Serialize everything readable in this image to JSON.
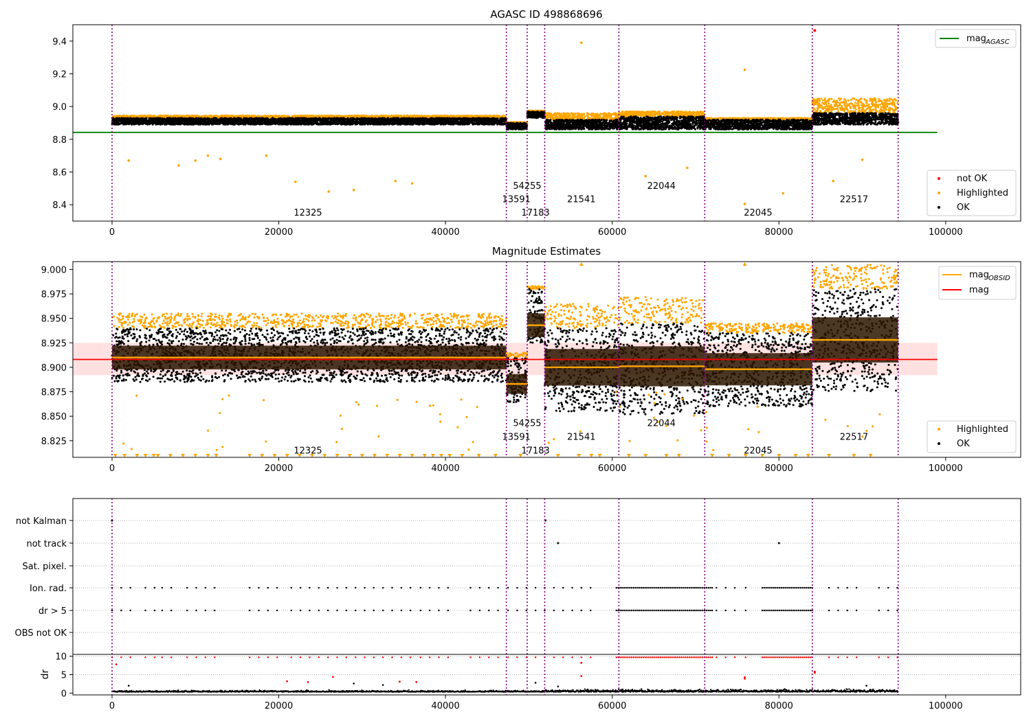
{
  "chart_data": [
    {
      "type": "scatter",
      "title": "AGASC ID 498868696",
      "xlim": [
        -4700,
        109000
      ],
      "ylim": [
        8.3,
        9.5
      ],
      "yticks": [
        8.4,
        8.6,
        8.8,
        9.0,
        9.2,
        9.4
      ],
      "ytick_labels": [
        "8.4",
        "8.6",
        "8.8",
        "9.0",
        "9.2",
        "9.4"
      ],
      "xticks": [
        0,
        20000,
        40000,
        60000,
        80000,
        100000
      ],
      "xtick_labels": [
        "0",
        "20000",
        "40000",
        "60000",
        "80000",
        "100000"
      ],
      "hline": {
        "y": 8.842,
        "x_range": [
          -4700,
          99000
        ],
        "color": "#008000"
      },
      "legend_lines": [
        {
          "label": "mag",
          "sub": "AGASC",
          "color": "#008000"
        }
      ],
      "legend_points": [
        {
          "label": "not OK",
          "color": "#ff0000"
        },
        {
          "label": "Highlighted",
          "color": "#ffa500"
        },
        {
          "label": "OK",
          "color": "#000000"
        }
      ],
      "segments": [
        {
          "obsid": "12325",
          "x0": 0,
          "x1": 47300,
          "mean": 8.91,
          "ok_band": [
            8.89,
            8.93
          ],
          "hl_band": [
            8.93,
            8.945
          ]
        },
        {
          "obsid": "13591",
          "x0": 47300,
          "x1": 49800,
          "mean": 8.88,
          "ok_band": [
            8.86,
            8.9
          ],
          "hl_band": [
            8.9,
            8.905
          ]
        },
        {
          "obsid": "54255",
          "x0": 49800,
          "x1": 51900,
          "mean": 8.945,
          "ok_band": [
            8.93,
            8.97
          ],
          "hl_band": [
            8.97,
            8.975
          ]
        },
        {
          "obsid": "17183",
          "x0": 51900,
          "x1": 51950,
          "mean": 8.9,
          "ok_band": [
            8.88,
            8.92
          ],
          "hl_band": [
            8.92,
            8.93
          ]
        },
        {
          "obsid": "21541",
          "x0": 51950,
          "x1": 60800,
          "mean": 8.9,
          "ok_band": [
            8.86,
            8.92
          ],
          "hl_band": [
            8.92,
            8.96
          ]
        },
        {
          "obsid": "22044",
          "x0": 60800,
          "x1": 71100,
          "mean": 8.905,
          "ok_band": [
            8.86,
            8.94
          ],
          "hl_band": [
            8.94,
            8.97
          ]
        },
        {
          "obsid": "22045",
          "x0": 71100,
          "x1": 84000,
          "mean": 8.895,
          "ok_band": [
            8.86,
            8.92
          ],
          "hl_band": [
            8.92,
            8.93
          ]
        },
        {
          "obsid": "22517",
          "x0": 84000,
          "x1": 94300,
          "mean": 8.93,
          "ok_band": [
            8.89,
            8.96
          ],
          "hl_band": [
            8.96,
            9.05
          ]
        }
      ],
      "obsid_labels": [
        {
          "text": "12325",
          "x": 23500,
          "y": 8.333
        },
        {
          "text": "13591",
          "x": 48500,
          "y": 8.415
        },
        {
          "text": "54255",
          "x": 49800,
          "y": 8.498
        },
        {
          "text": "17183",
          "x": 50800,
          "y": 8.333
        },
        {
          "text": "21541",
          "x": 56300,
          "y": 8.415
        },
        {
          "text": "22044",
          "x": 65900,
          "y": 8.498
        },
        {
          "text": "22045",
          "x": 77500,
          "y": 8.333
        },
        {
          "text": "22517",
          "x": 89000,
          "y": 8.415
        }
      ],
      "outliers_highlighted": [
        [
          56300,
          9.39
        ],
        [
          75900,
          9.225
        ],
        [
          22000,
          8.54
        ],
        [
          26000,
          8.48
        ],
        [
          29000,
          8.49
        ],
        [
          36000,
          8.53
        ],
        [
          86500,
          8.545
        ],
        [
          75900,
          8.405
        ],
        [
          80500,
          8.47
        ],
        [
          64000,
          8.575
        ],
        [
          69000,
          8.625
        ],
        [
          8000,
          8.64
        ],
        [
          90000,
          8.675
        ],
        [
          2000,
          8.67
        ],
        [
          34000,
          8.545
        ],
        [
          10000,
          8.67
        ],
        [
          18500,
          8.7
        ],
        [
          11500,
          8.7
        ],
        [
          13000,
          8.68
        ]
      ],
      "outliers_notok": [
        [
          84300,
          9.465
        ]
      ]
    },
    {
      "type": "scatter",
      "title": "Magnitude Estimates",
      "xlim": [
        -4700,
        109000
      ],
      "ylim": [
        8.808,
        9.008
      ],
      "yticks": [
        8.825,
        8.85,
        8.875,
        8.9,
        8.925,
        8.95,
        8.975,
        9.0
      ],
      "ytick_labels": [
        "8.825",
        "8.850",
        "8.875",
        "8.900",
        "8.925",
        "8.950",
        "8.975",
        "9.000"
      ],
      "xticks": [
        0,
        20000,
        40000,
        60000,
        80000,
        100000
      ],
      "xtick_labels": [
        "0",
        "20000",
        "40000",
        "60000",
        "80000",
        "100000"
      ],
      "mag_line": {
        "y": 8.908,
        "band": [
          8.892,
          8.925
        ],
        "x_range": [
          -4700,
          99000
        ],
        "color": "#ff0000"
      },
      "legend_lines": [
        {
          "label": "mag",
          "sub": "OBSID",
          "color": "#ffa500"
        },
        {
          "label": "mag",
          "sub": "",
          "color": "#ff0000"
        }
      ],
      "legend_points": [
        {
          "label": "Highlighted",
          "color": "#ffa500"
        },
        {
          "label": "OK",
          "color": "#000000"
        }
      ],
      "segments": [
        {
          "x0": 0,
          "x1": 47300,
          "mean": 8.91,
          "ok_band": [
            8.885,
            8.94
          ],
          "hl_band": [
            8.94,
            8.955
          ]
        },
        {
          "x0": 47300,
          "x1": 49800,
          "mean": 8.883,
          "ok_band": [
            8.864,
            8.91
          ],
          "hl_band": [
            8.91,
            8.915
          ]
        },
        {
          "x0": 49800,
          "x1": 51900,
          "mean": 8.943,
          "ok_band": [
            8.925,
            8.98
          ],
          "hl_band": [
            8.98,
            8.983
          ]
        },
        {
          "x0": 51900,
          "x1": 60800,
          "mean": 8.9,
          "ok_band": [
            8.855,
            8.94
          ],
          "hl_band": [
            8.94,
            8.965
          ]
        },
        {
          "x0": 60800,
          "x1": 71100,
          "mean": 8.901,
          "ok_band": [
            8.852,
            8.945
          ],
          "hl_band": [
            8.945,
            8.972
          ]
        },
        {
          "x0": 71100,
          "x1": 84000,
          "mean": 8.898,
          "ok_band": [
            8.86,
            8.935
          ],
          "hl_band": [
            8.935,
            8.945
          ]
        },
        {
          "x0": 84000,
          "x1": 94300,
          "mean": 8.928,
          "ok_band": [
            8.875,
            8.98
          ],
          "hl_band": [
            8.98,
            9.005
          ]
        }
      ],
      "obsid_labels": [
        {
          "text": "12325",
          "x": 23500,
          "y": 8.812
        },
        {
          "text": "13591",
          "x": 48500,
          "y": 8.826
        },
        {
          "text": "54255",
          "x": 49800,
          "y": 8.84
        },
        {
          "text": "17183",
          "x": 50800,
          "y": 8.812
        },
        {
          "text": "21541",
          "x": 56300,
          "y": 8.826
        },
        {
          "text": "22044",
          "x": 65900,
          "y": 8.84
        },
        {
          "text": "22045",
          "x": 77500,
          "y": 8.812
        },
        {
          "text": "22517",
          "x": 89000,
          "y": 8.826
        }
      ],
      "floor_markers": [
        400,
        1500,
        3000,
        4000,
        5000,
        5500,
        7000,
        8500,
        10000,
        11500,
        12500,
        16500,
        18000,
        19500,
        21000,
        22500,
        24000,
        25500,
        27000,
        28500,
        30000,
        31500,
        33000,
        34500,
        36000,
        37500,
        38500,
        39500,
        40500,
        42000,
        44000,
        46000,
        49000,
        53500,
        56000,
        57500,
        58500,
        62000,
        64000,
        66500,
        68000,
        72000,
        74000,
        76000,
        78000,
        80000,
        82000,
        83500,
        86000,
        89000,
        91000
      ]
    },
    {
      "type": "scatter",
      "title": "",
      "xlim": [
        -4700,
        109000
      ],
      "categories": [
        "not Kalman",
        "not track",
        "Sat. pixel.",
        "Ion. rad.",
        "dr > 5",
        "OBS not OK"
      ],
      "flags": {
        "not Kalman": [
          0,
          0,
          52000
        ],
        "not track": [
          53500,
          80000
        ],
        "Sat. pixel.": [],
        "Ion. rad.": [
          [
            0,
            3000
          ],
          [
            4000,
            5200
          ],
          [
            6000,
            8000
          ],
          [
            9000,
            13000
          ],
          [
            16500,
            20500
          ],
          [
            21500,
            26000
          ],
          [
            27000,
            31500
          ],
          [
            32500,
            36000
          ],
          [
            37000,
            41000
          ],
          [
            43000,
            47000
          ],
          [
            47500,
            52500
          ],
          [
            53000,
            57500
          ],
          [
            60500,
            72000
          ],
          [
            72500,
            75000
          ],
          [
            76000,
            77000
          ],
          [
            78000,
            84000
          ],
          [
            86000,
            89500
          ],
          [
            92000,
            94300
          ]
        ],
        "dr > 5": [
          [
            0,
            3000
          ],
          [
            4000,
            5200
          ],
          [
            6000,
            8000
          ],
          [
            9000,
            13000
          ],
          [
            16500,
            20500
          ],
          [
            21500,
            26000
          ],
          [
            27000,
            31500
          ],
          [
            32500,
            36000
          ],
          [
            37000,
            41000
          ],
          [
            43000,
            47000
          ],
          [
            47500,
            52500
          ],
          [
            53000,
            57500
          ],
          [
            60500,
            72000
          ],
          [
            72500,
            75000
          ],
          [
            76000,
            77000
          ],
          [
            78000,
            84000
          ],
          [
            86000,
            89500
          ],
          [
            92000,
            94300
          ]
        ],
        "OBS not OK": []
      },
      "dr_axis": {
        "ylabel": "dr",
        "yticks": [
          0,
          5,
          10
        ],
        "ytick_labels": [
          "0",
          "5",
          "10"
        ],
        "ylim": [
          -0.5,
          10.5
        ],
        "red_points": [
          [
            500,
            7.8
          ],
          [
            21000,
            3.2
          ],
          [
            23500,
            3.0
          ],
          [
            26500,
            4.4
          ],
          [
            34500,
            3.1
          ],
          [
            36500,
            3.0
          ],
          [
            56300,
            8.2
          ],
          [
            56300,
            4.6
          ],
          [
            75900,
            4.3
          ],
          [
            75900,
            3.9
          ],
          [
            84300,
            5.8
          ],
          [
            84300,
            5.5
          ]
        ],
        "black_points": [
          [
            29000,
            2.6
          ],
          [
            32500,
            2.2
          ],
          [
            50800,
            2.8
          ],
          [
            53500,
            1.8
          ],
          [
            90500,
            2.0
          ],
          [
            2000,
            2.0
          ]
        ]
      },
      "xticks": [
        0,
        20000,
        40000,
        60000,
        80000,
        100000
      ],
      "xtick_labels": [
        "0",
        "20000",
        "40000",
        "60000",
        "80000",
        "100000"
      ]
    }
  ],
  "obs_boundaries": [
    0,
    47300,
    49800,
    51900,
    60800,
    71100,
    84000,
    94300
  ]
}
